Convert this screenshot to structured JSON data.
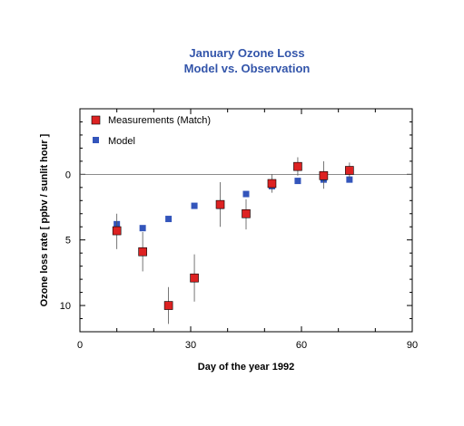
{
  "chart_data": {
    "type": "scatter",
    "title": "January Ozone Loss",
    "subtitle": "Model vs. Observation",
    "xlabel": "Day of the year 1992",
    "ylabel": "Ozone loss rate [ ppbv / sunlit hour ]",
    "xlim": [
      0,
      90
    ],
    "ylim": [
      -5,
      12
    ],
    "y_inverted": true,
    "x_ticks": [
      0,
      30,
      60,
      90
    ],
    "y_ticks": [
      0,
      5,
      10
    ],
    "zero_line": true,
    "grid": false,
    "legend_position": "top-left",
    "series": [
      {
        "name": "Measurements (Match)",
        "color": "#dd2222",
        "marker": "square",
        "points": [
          {
            "x": 10,
            "y": 4.3,
            "err_low": 3.0,
            "err_high": 5.7
          },
          {
            "x": 17,
            "y": 5.9,
            "err_low": 4.4,
            "err_high": 7.4
          },
          {
            "x": 24,
            "y": 10.0,
            "err_low": 8.6,
            "err_high": 11.4
          },
          {
            "x": 31,
            "y": 7.9,
            "err_low": 6.1,
            "err_high": 9.7
          },
          {
            "x": 38,
            "y": 2.3,
            "err_low": 0.6,
            "err_high": 4.0
          },
          {
            "x": 45,
            "y": 3.0,
            "err_low": 1.9,
            "err_high": 4.2
          },
          {
            "x": 52,
            "y": 0.7,
            "err_low": 0.0,
            "err_high": 1.4
          },
          {
            "x": 59,
            "y": -0.6,
            "err_low": -1.3,
            "err_high": 0.1
          },
          {
            "x": 66,
            "y": 0.1,
            "err_low": -1.0,
            "err_high": 1.1
          },
          {
            "x": 73,
            "y": -0.3,
            "err_low": -0.9,
            "err_high": 0.3
          }
        ]
      },
      {
        "name": "Model",
        "color": "#3355bb",
        "marker": "square",
        "points": [
          {
            "x": 10,
            "y": 3.8
          },
          {
            "x": 17,
            "y": 4.1
          },
          {
            "x": 24,
            "y": 3.4
          },
          {
            "x": 31,
            "y": 2.4
          },
          {
            "x": 38,
            "y": 2.4
          },
          {
            "x": 45,
            "y": 1.5
          },
          {
            "x": 52,
            "y": 0.9
          },
          {
            "x": 59,
            "y": 0.5
          },
          {
            "x": 66,
            "y": 0.4
          },
          {
            "x": 73,
            "y": 0.4
          }
        ]
      }
    ]
  }
}
